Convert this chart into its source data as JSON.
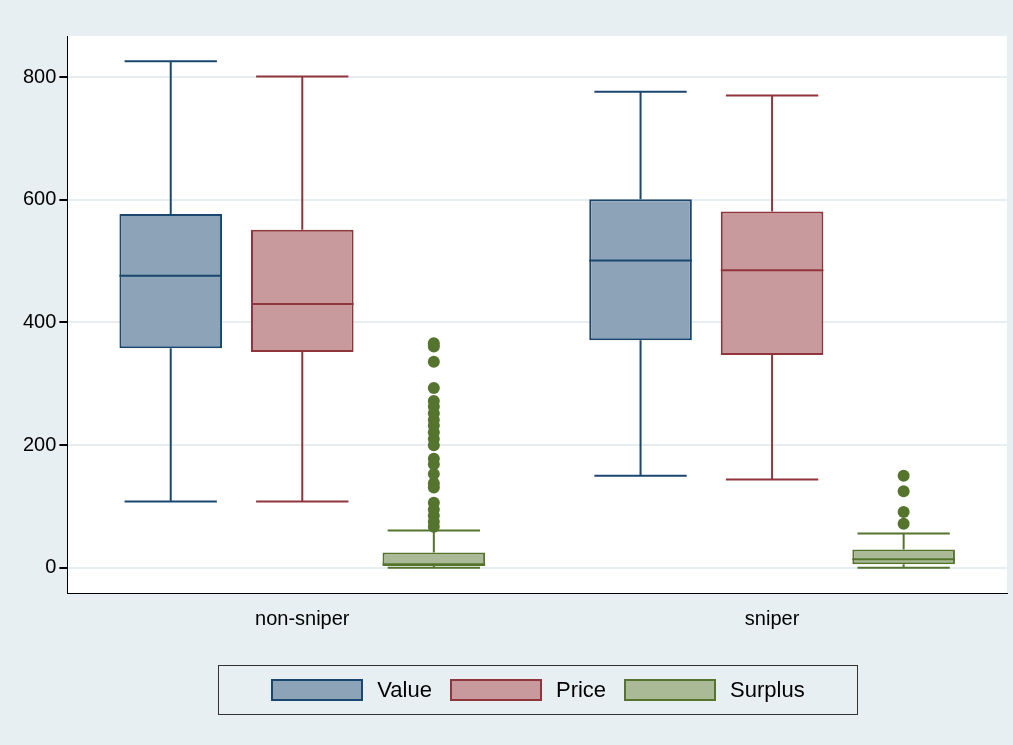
{
  "chart_data": {
    "type": "box",
    "categories": [
      "non-sniper",
      "sniper"
    ],
    "series": [
      {
        "name": "Value",
        "color": "#1a476f",
        "boxes": [
          {
            "low": 108,
            "q1": 358,
            "median": 476,
            "q3": 577,
            "high": 826
          },
          {
            "low": 150,
            "q1": 371,
            "median": 501,
            "q3": 601,
            "high": 776
          }
        ]
      },
      {
        "name": "Price",
        "color": "#90353b",
        "boxes": [
          {
            "low": 108,
            "q1": 352,
            "median": 430,
            "q3": 551,
            "high": 801
          },
          {
            "low": 144,
            "q1": 347,
            "median": 485,
            "q3": 581,
            "high": 770
          }
        ]
      },
      {
        "name": "Surplus",
        "color": "#55752f",
        "boxes": [
          {
            "low": 0,
            "q1": 3,
            "median": 6,
            "q3": 25,
            "high": 61,
            "outliers": [
              67,
              75,
              85,
              95,
              106,
              131,
              138,
              153,
              169,
              178,
              200,
              210,
              221,
              232,
              241,
              252,
              263,
              272,
              293,
              336,
              361,
              366
            ]
          },
          {
            "low": 0,
            "q1": 6,
            "median": 14,
            "q3": 30,
            "high": 56,
            "outliers": [
              72,
              91,
              125,
              150
            ]
          }
        ]
      }
    ],
    "ylim": [
      -41,
      867
    ],
    "yticks": [
      0,
      200,
      400,
      600,
      800
    ],
    "grid": "y",
    "legend": "bottom"
  }
}
